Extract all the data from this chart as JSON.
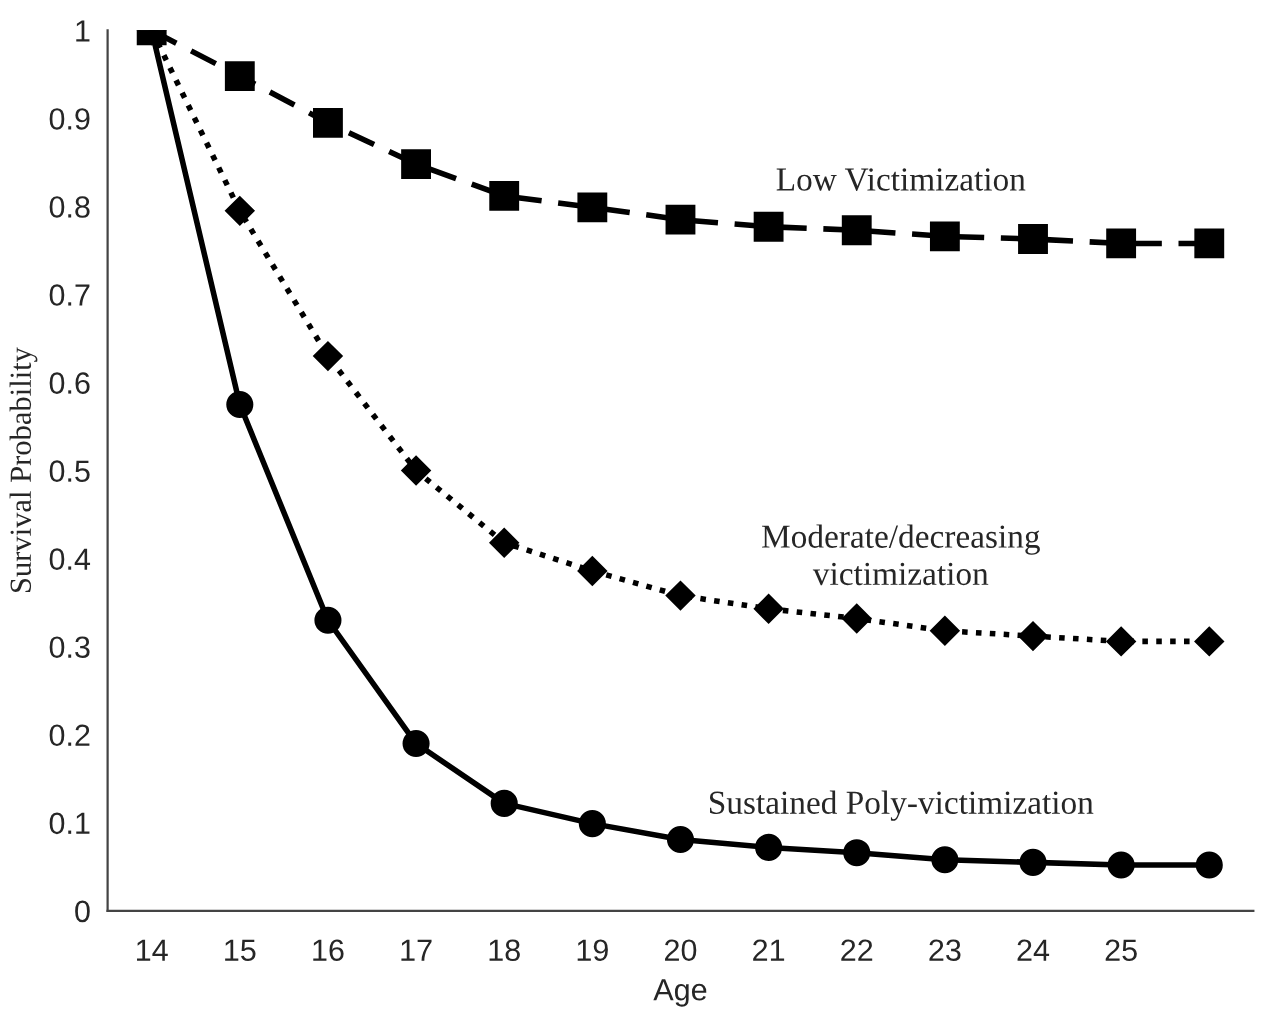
{
  "chart_data": {
    "type": "line",
    "xlabel": "Age",
    "ylabel": "Survival Probability",
    "categories": [
      "14",
      "15",
      "16",
      "17",
      "18",
      "19",
      "20",
      "21",
      "22",
      "23",
      "24",
      "25",
      null
    ],
    "series": [
      {
        "name": "Low Victimization",
        "color": "#000000",
        "marker": "square",
        "line_style": "dashed",
        "values": [
          1,
          0.948,
          0.895,
          0.848,
          0.812,
          0.799,
          0.785,
          0.777,
          0.773,
          0.766,
          0.763,
          0.758,
          0.758
        ]
      },
      {
        "name": "Moderate/decreasing\nvictimization",
        "color": "#000000",
        "marker": "diamond",
        "line_style": "dotted",
        "values": [
          1,
          0.795,
          0.63,
          0.5,
          0.418,
          0.386,
          0.358,
          0.343,
          0.332,
          0.318,
          0.312,
          0.306,
          0.306
        ]
      },
      {
        "name": "Sustained Poly-victimization",
        "color": "#000000",
        "marker": "circle",
        "line_style": "solid",
        "values": [
          1,
          0.575,
          0.33,
          0.19,
          0.122,
          0.099,
          0.081,
          0.072,
          0.066,
          0.058,
          0.055,
          0.052,
          0.052
        ]
      }
    ],
    "ylim": [
      0,
      1
    ],
    "yticks": [
      0,
      0.1,
      0.2,
      0.3,
      0.4,
      0.5,
      0.6,
      0.7,
      0.8,
      0.9,
      1
    ],
    "grid": false,
    "legend": false
  }
}
